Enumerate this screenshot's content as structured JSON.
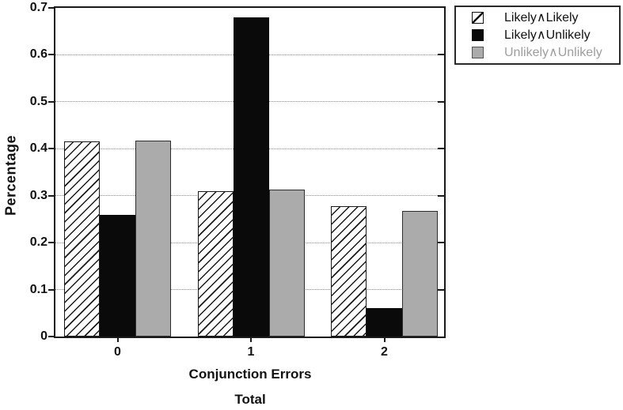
{
  "chart_data": {
    "type": "bar",
    "title": "",
    "categories": [
      "0",
      "1",
      "2"
    ],
    "series": [
      {
        "name": "Likely∧Likely",
        "style": "hatched",
        "values": [
          0.415,
          0.31,
          0.277
        ]
      },
      {
        "name": "Likely∧Unlikely",
        "style": "black",
        "values": [
          0.26,
          0.68,
          0.06
        ]
      },
      {
        "name": "Unlikely∧Unlikely",
        "style": "gray",
        "values": [
          0.417,
          0.313,
          0.267
        ]
      }
    ],
    "xlabel": "Conjunction Errors",
    "xlabel_line2": "Total",
    "ylabel": "Percentage",
    "ylim": [
      0,
      0.7
    ],
    "yticks": [
      "0",
      "0.1",
      "0.2",
      "0.3",
      "0.4",
      "0.5",
      "0.6",
      "0.7"
    ],
    "grid": "horizontal-dotted",
    "legend_position": "outside-top-right"
  },
  "colors": {
    "bar_black": "#0a0a0a",
    "bar_gray": "#ababab",
    "hatch_line": "#1a1a1a",
    "axis": "#1a1a1a",
    "gridline": "#8a8a8a",
    "legend_gray_text": "#9e9e9e",
    "background": "#ffffff"
  }
}
